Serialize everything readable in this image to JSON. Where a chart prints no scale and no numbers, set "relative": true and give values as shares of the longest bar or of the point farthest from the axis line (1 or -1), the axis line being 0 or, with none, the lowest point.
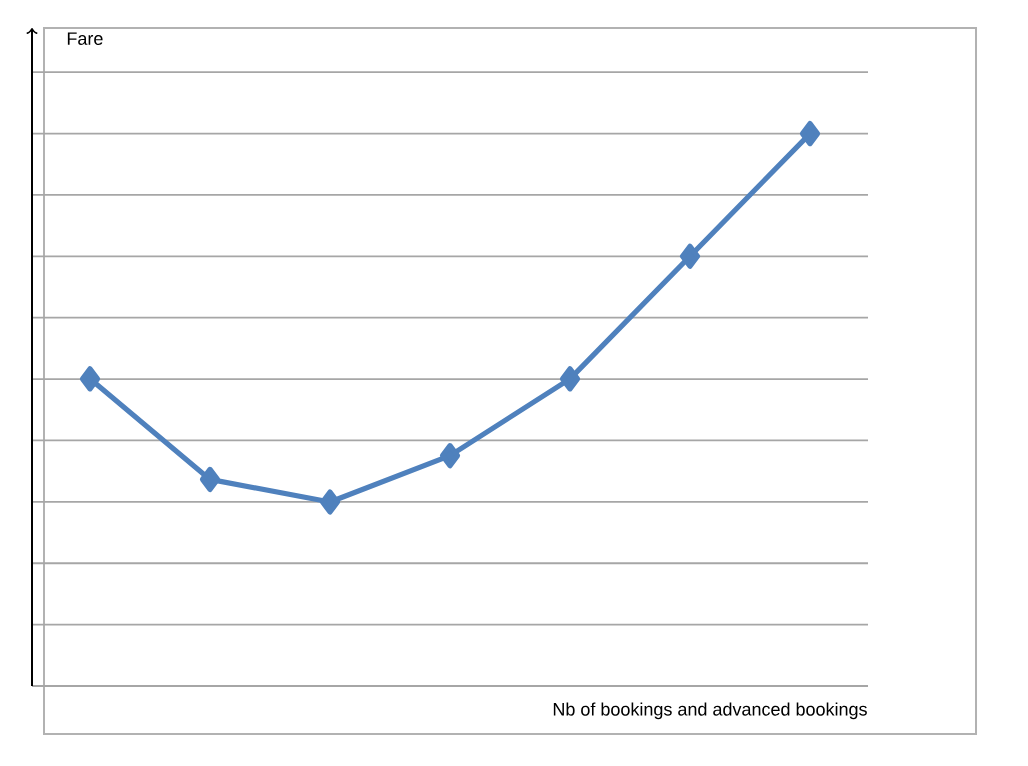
{
  "chart_data": {
    "type": "line",
    "relative": true,
    "xlabel": "Nb of bookings and advanced bookings",
    "ylabel": "Fare",
    "categories": [
      null,
      null,
      null,
      null,
      null,
      null,
      null
    ],
    "values": [
      0.556,
      0.374,
      0.333,
      0.417,
      0.556,
      0.778,
      1
    ],
    "color": "#4f81bd",
    "marker": "diamond",
    "line_style": "solid",
    "grid": "y"
  }
}
